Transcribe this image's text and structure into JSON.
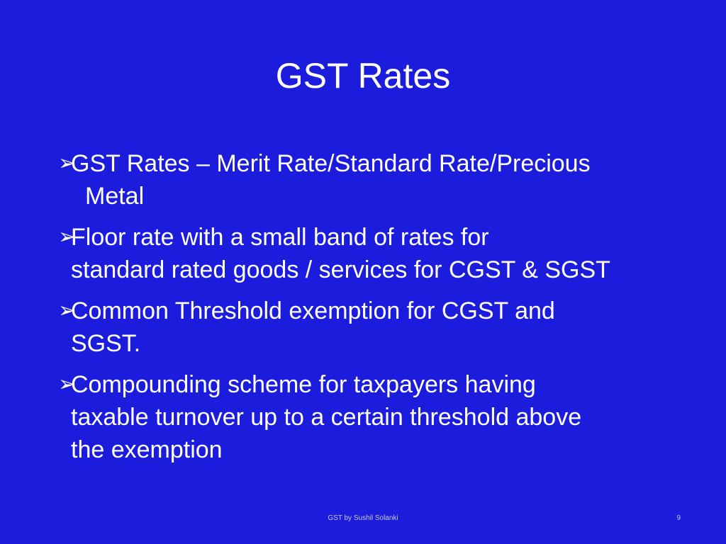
{
  "slide": {
    "title_part1": "GST",
    "title_part2": "Rates",
    "bullet_marker": "➢",
    "bullets": [
      {
        "lines": [
          "GST Rates – Merit Rate/Standard Rate/Precious",
          "Metal"
        ]
      },
      {
        "lines": [
          "Floor rate with a small band of rates for",
          "standard rated goods / services for CGST & SGST"
        ]
      },
      {
        "lines": [
          "Common Threshold exemption for CGST and",
          "SGST."
        ]
      },
      {
        "lines": [
          "Compounding scheme for taxpayers having",
          "taxable turnover up to a certain threshold above",
          "the exemption"
        ]
      }
    ],
    "footer": "GST by Sushil Solanki",
    "page_number": "9"
  },
  "colors": {
    "background": "#1c1cdc",
    "text": "#ffffff"
  }
}
